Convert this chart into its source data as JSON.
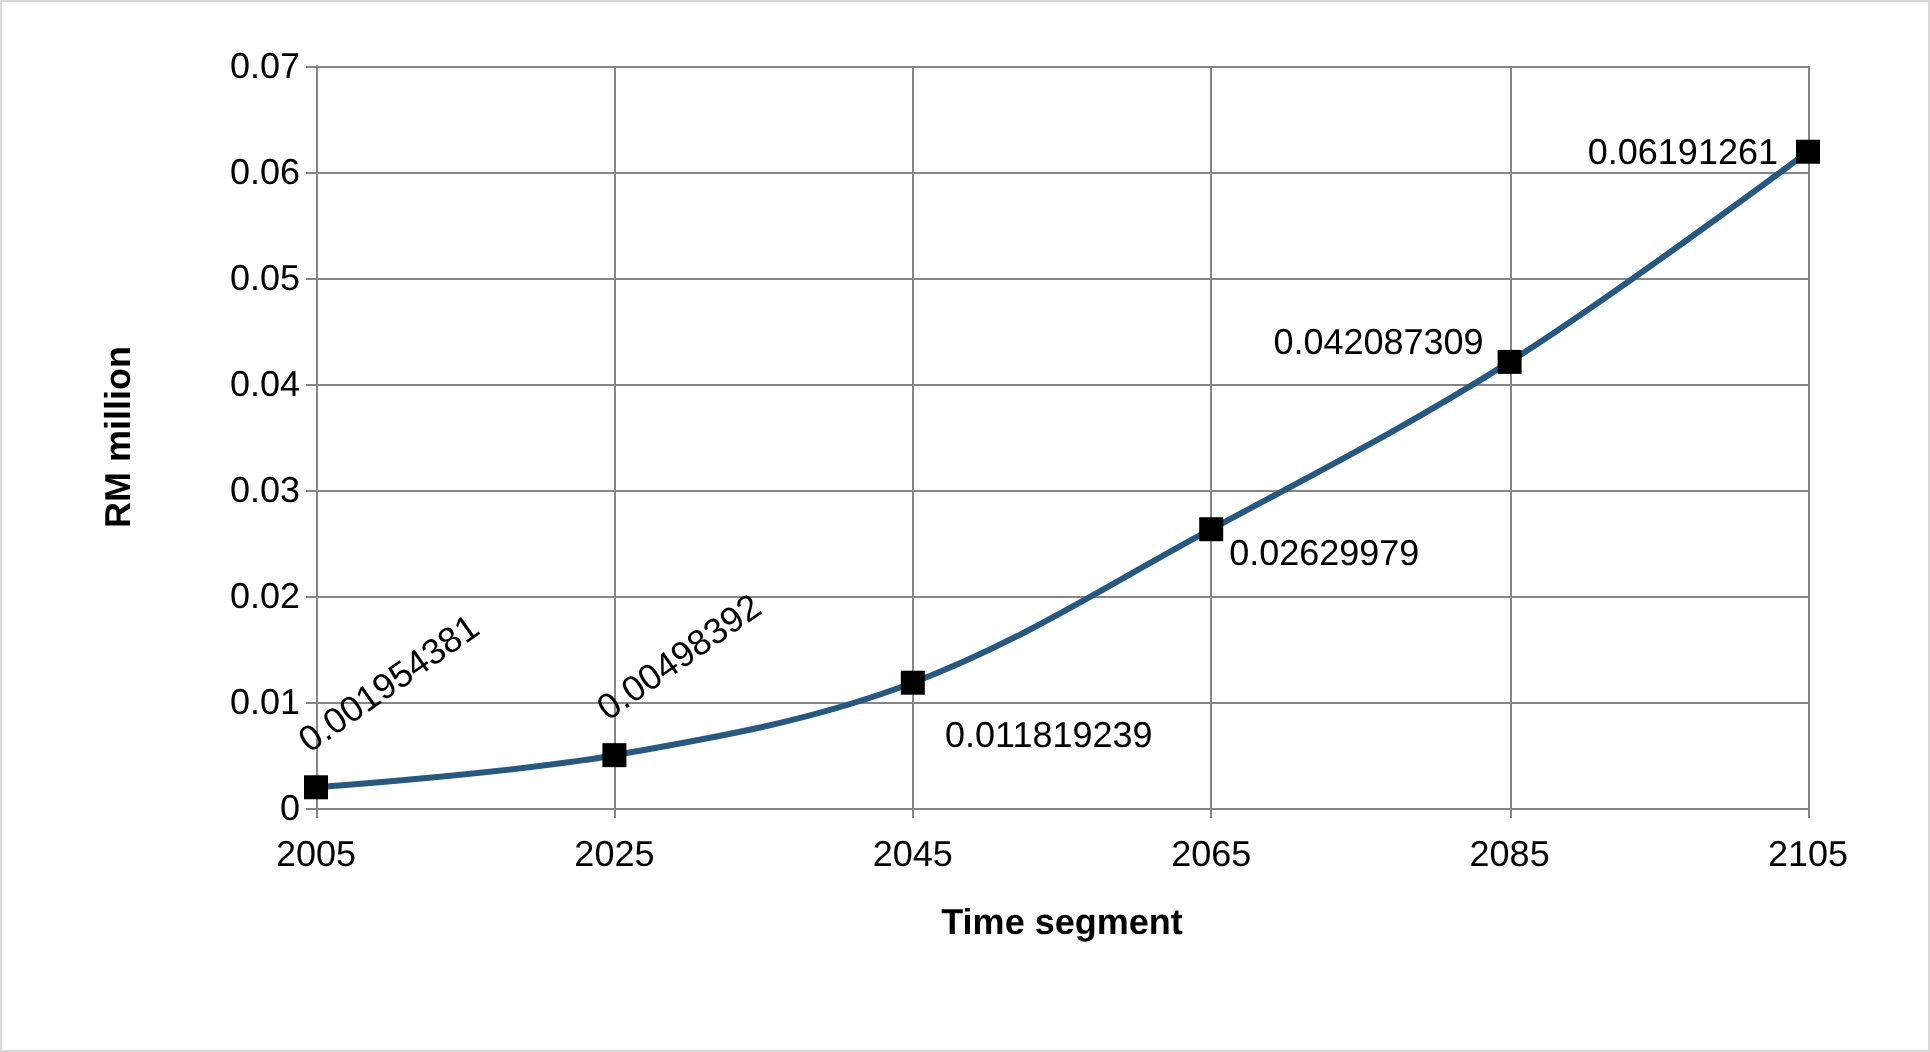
{
  "chart_data": {
    "type": "line",
    "xlabel": "Time segment",
    "ylabel": "RM million",
    "x": [
      2005,
      2025,
      2045,
      2065,
      2085,
      2105
    ],
    "series": [
      {
        "color": "#285780",
        "values": [
          0.001954381,
          0.00498392,
          0.011819239,
          0.02629979,
          0.042087309,
          0.06191261
        ]
      }
    ],
    "xlim": [
      2005,
      2105
    ],
    "xticks": [
      2005,
      2025,
      2045,
      2065,
      2085,
      2105
    ],
    "ylim": [
      0,
      0.07
    ],
    "yticks": [
      0,
      0.01,
      0.02,
      0.03,
      0.04,
      0.05,
      0.06,
      0.07
    ],
    "grid": true,
    "marker": "square",
    "line_style": "solid",
    "data_labels": true
  }
}
